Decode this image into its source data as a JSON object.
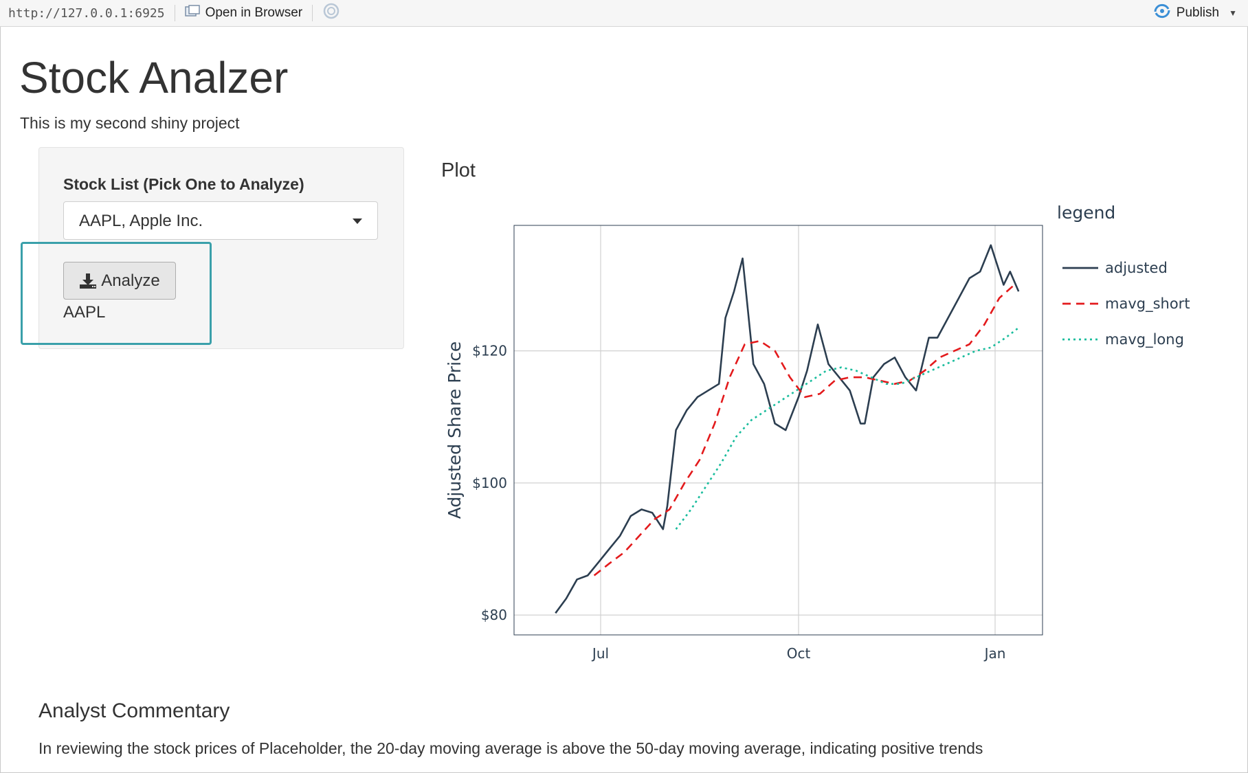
{
  "toolbar": {
    "url": "http://127.0.0.1:6925",
    "open_browser_label": "Open in Browser",
    "publish_label": "Publish"
  },
  "page": {
    "title": "Stock Analzer",
    "subtitle": "This is my second shiny project"
  },
  "sidebar": {
    "stock_list_label": "Stock List (Pick One to Analyze)",
    "selected_stock": "AAPL, Apple Inc.",
    "analyze_label": "Analyze",
    "ticker_output": "AAPL"
  },
  "plot": {
    "heading": "Plot"
  },
  "commentary": {
    "title": "Analyst Commentary",
    "text": "In reviewing the stock prices of Placeholder, the 20-day moving average is above the 50-day moving average, indicating positive trends"
  },
  "colors": {
    "adjusted": "#2c3e50",
    "mavg_short": "#e31a1c",
    "mavg_long": "#18bc9c",
    "highlight": "#3aa0aa"
  },
  "chart_data": {
    "type": "line",
    "xlabel": "",
    "ylabel": "Adjusted Share Price",
    "x_ticks": [
      "Jul",
      "Oct",
      "Jan"
    ],
    "y_ticks": [
      "$80",
      "$100",
      "$120"
    ],
    "ylim": [
      77,
      139
    ],
    "legend_title": "legend",
    "legend_position": "right",
    "grid": true,
    "series": [
      {
        "name": "adjusted",
        "style": "solid",
        "x": [
          "2020-06-10",
          "2020-06-15",
          "2020-06-20",
          "2020-06-25",
          "2020-06-30",
          "2020-07-05",
          "2020-07-10",
          "2020-07-15",
          "2020-07-20",
          "2020-07-25",
          "2020-07-30",
          "2020-08-01",
          "2020-08-05",
          "2020-08-10",
          "2020-08-15",
          "2020-08-20",
          "2020-08-25",
          "2020-08-28",
          "2020-09-01",
          "2020-09-05",
          "2020-09-10",
          "2020-09-15",
          "2020-09-20",
          "2020-09-25",
          "2020-10-01",
          "2020-10-05",
          "2020-10-10",
          "2020-10-15",
          "2020-10-20",
          "2020-10-25",
          "2020-10-30",
          "2020-11-01",
          "2020-11-05",
          "2020-11-10",
          "2020-11-15",
          "2020-11-20",
          "2020-11-25",
          "2020-12-01",
          "2020-12-05",
          "2020-12-10",
          "2020-12-15",
          "2020-12-20",
          "2020-12-25",
          "2020-12-30",
          "2021-01-02",
          "2021-01-05",
          "2021-01-08",
          "2021-01-12"
        ],
        "values": [
          80.3,
          82.5,
          85.4,
          86.0,
          88.0,
          90.0,
          92.0,
          95.0,
          96.0,
          95.5,
          93.0,
          96.5,
          108.0,
          111.0,
          113.0,
          114.0,
          115.0,
          125.0,
          129.0,
          134.0,
          118.0,
          115.0,
          109.0,
          108.0,
          113.0,
          117.0,
          124.0,
          118.0,
          116.0,
          114.0,
          109.0,
          109.0,
          116.0,
          118.0,
          119.0,
          116.0,
          114.0,
          122.0,
          122.0,
          125.0,
          128.0,
          131.0,
          132.0,
          136.0,
          133.0,
          130.0,
          132.0,
          129.0
        ]
      },
      {
        "name": "mavg_short",
        "style": "dash",
        "x": [
          "2020-06-28",
          "2020-07-05",
          "2020-07-12",
          "2020-07-19",
          "2020-07-26",
          "2020-08-02",
          "2020-08-09",
          "2020-08-16",
          "2020-08-23",
          "2020-08-30",
          "2020-09-06",
          "2020-09-13",
          "2020-09-20",
          "2020-09-27",
          "2020-10-04",
          "2020-10-11",
          "2020-10-18",
          "2020-10-25",
          "2020-11-01",
          "2020-11-08",
          "2020-11-15",
          "2020-11-22",
          "2020-11-29",
          "2020-12-06",
          "2020-12-13",
          "2020-12-20",
          "2020-12-27",
          "2021-01-03",
          "2021-01-10"
        ],
        "values": [
          86.0,
          87.8,
          89.5,
          92.0,
          94.5,
          96.0,
          100.0,
          103.5,
          109.0,
          116.0,
          121.0,
          121.5,
          120.0,
          116.0,
          113.0,
          113.5,
          115.5,
          116.0,
          116.0,
          115.5,
          115.0,
          115.5,
          117.0,
          119.0,
          120.0,
          121.0,
          124.0,
          128.0,
          130.0
        ]
      },
      {
        "name": "mavg_long",
        "style": "dot",
        "x": [
          "2020-08-05",
          "2020-08-12",
          "2020-08-19",
          "2020-08-26",
          "2020-09-02",
          "2020-09-09",
          "2020-09-16",
          "2020-09-23",
          "2020-09-30",
          "2020-10-07",
          "2020-10-14",
          "2020-10-21",
          "2020-10-28",
          "2020-11-04",
          "2020-11-11",
          "2020-11-18",
          "2020-11-25",
          "2020-12-02",
          "2020-12-09",
          "2020-12-16",
          "2020-12-23",
          "2020-12-30",
          "2021-01-06",
          "2021-01-12"
        ],
        "values": [
          93.0,
          96.0,
          99.5,
          103.0,
          107.0,
          109.5,
          111.0,
          112.5,
          114.0,
          115.5,
          117.0,
          117.5,
          117.0,
          116.0,
          115.0,
          115.0,
          116.0,
          117.0,
          118.0,
          119.0,
          120.0,
          120.5,
          122.0,
          123.5
        ]
      }
    ]
  }
}
